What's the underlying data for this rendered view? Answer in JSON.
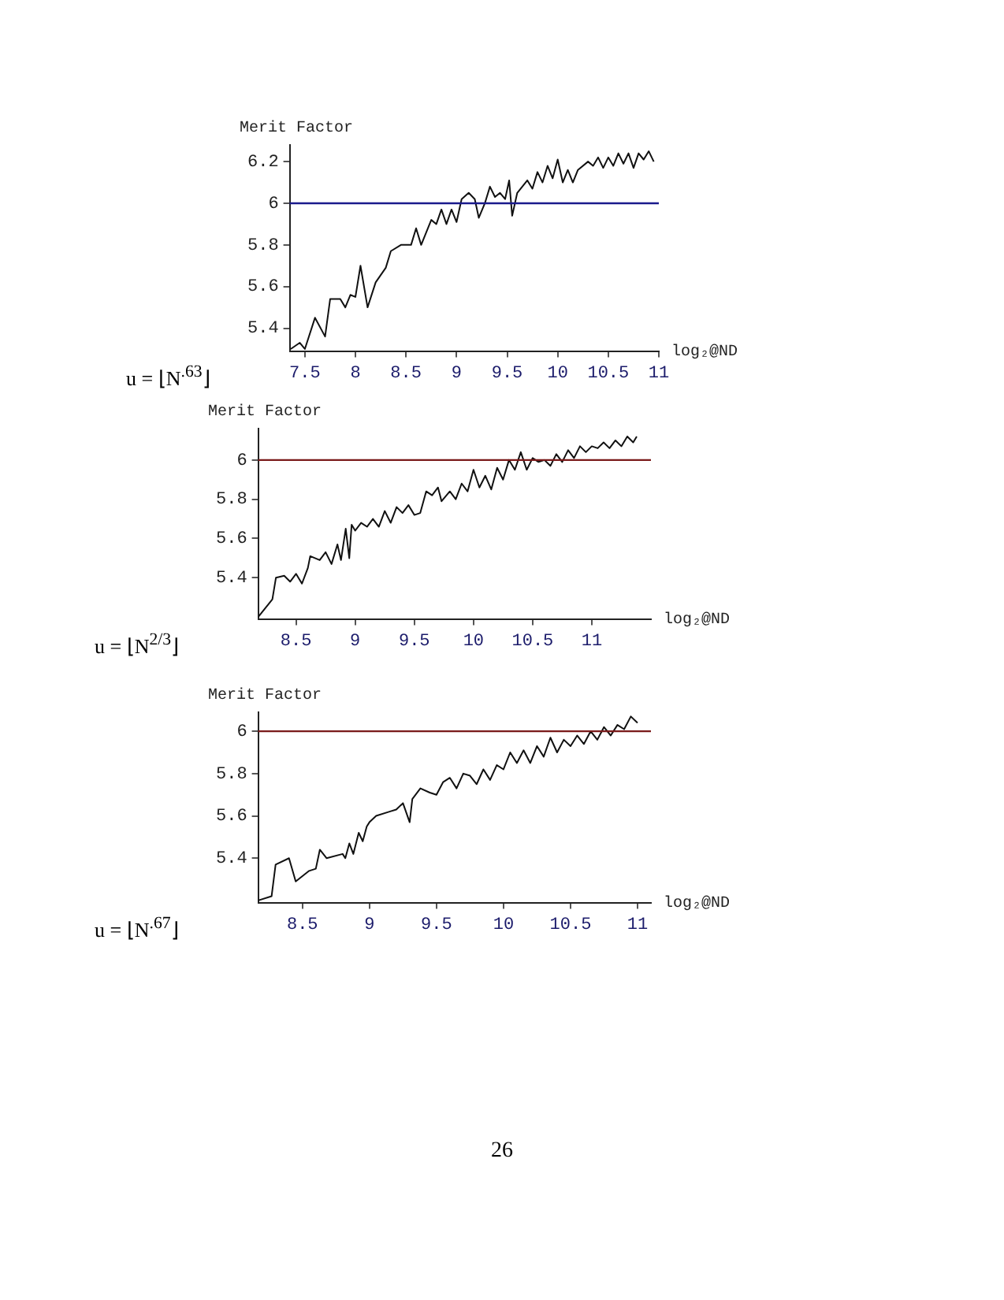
{
  "chart_data": [
    {
      "type": "line",
      "ylabel": "Merit Factor",
      "xlabel": "log₂@ND",
      "xlim": [
        7.35,
        11
      ],
      "ylim": [
        5.29,
        6.28
      ],
      "xticks": [
        7.5,
        8,
        8.5,
        9,
        9.5,
        10,
        10.5,
        11
      ],
      "yticks": [
        5.4,
        5.6,
        5.8,
        6,
        6.2
      ],
      "grid": false,
      "legend": false,
      "marker": "none",
      "line_style": "solid",
      "ref_lines": [
        {
          "axis": "y",
          "value": 6,
          "color": "#1a1a8c"
        }
      ],
      "annotations": [
        "u = ⌊N$^{.63}$⌋"
      ],
      "series": [
        {
          "color": "#111111",
          "x": [
            7.36,
            7.45,
            7.5,
            7.6,
            7.7,
            7.75,
            7.85,
            7.9,
            7.95,
            8.0,
            8.05,
            8.12,
            8.2,
            8.3,
            8.35,
            8.45,
            8.55,
            8.6,
            8.65,
            8.75,
            8.8,
            8.85,
            8.9,
            8.95,
            9.0,
            9.05,
            9.12,
            9.18,
            9.22,
            9.28,
            9.33,
            9.38,
            9.43,
            9.48,
            9.52,
            9.55,
            9.6,
            9.65,
            9.7,
            9.75,
            9.8,
            9.85,
            9.9,
            9.95,
            10.0,
            10.05,
            10.1,
            10.15,
            10.2,
            10.3,
            10.35,
            10.4,
            10.45,
            10.5,
            10.55,
            10.6,
            10.65,
            10.7,
            10.75,
            10.8,
            10.85,
            10.9,
            10.95
          ],
          "values": [
            5.3,
            5.33,
            5.3,
            5.45,
            5.36,
            5.54,
            5.54,
            5.5,
            5.56,
            5.55,
            5.7,
            5.5,
            5.62,
            5.69,
            5.77,
            5.8,
            5.8,
            5.88,
            5.8,
            5.92,
            5.9,
            5.97,
            5.9,
            5.97,
            5.91,
            6.02,
            6.05,
            6.02,
            5.93,
            6.0,
            6.08,
            6.03,
            6.05,
            6.02,
            6.11,
            5.94,
            6.05,
            6.08,
            6.11,
            6.07,
            6.15,
            6.1,
            6.18,
            6.12,
            6.21,
            6.1,
            6.16,
            6.1,
            6.16,
            6.2,
            6.18,
            6.22,
            6.17,
            6.22,
            6.18,
            6.24,
            6.19,
            6.24,
            6.17,
            6.24,
            6.21,
            6.25,
            6.2
          ]
        }
      ]
    },
    {
      "type": "line",
      "ylabel": "Merit Factor",
      "xlabel": "log₂@ND",
      "xlim": [
        8.18,
        11.5
      ],
      "ylim": [
        5.19,
        6.16
      ],
      "xticks": [
        8.5,
        9,
        9.5,
        10,
        10.5,
        11
      ],
      "yticks": [
        5.4,
        5.6,
        5.8,
        6
      ],
      "grid": false,
      "legend": false,
      "marker": "none",
      "line_style": "solid",
      "ref_lines": [
        {
          "axis": "y",
          "value": 6,
          "color": "#7a1a1a"
        }
      ],
      "annotations": [
        "u = ⌊N$^{2/3}$⌋"
      ],
      "series": [
        {
          "color": "#111111",
          "x": [
            8.18,
            8.3,
            8.33,
            8.4,
            8.45,
            8.5,
            8.55,
            8.6,
            8.62,
            8.7,
            8.75,
            8.8,
            8.85,
            8.88,
            8.92,
            8.95,
            8.97,
            9.0,
            9.05,
            9.1,
            9.15,
            9.2,
            9.25,
            9.3,
            9.35,
            9.4,
            9.45,
            9.5,
            9.55,
            9.6,
            9.65,
            9.7,
            9.73,
            9.8,
            9.85,
            9.9,
            9.95,
            10.0,
            10.05,
            10.1,
            10.15,
            10.2,
            10.25,
            10.3,
            10.35,
            10.4,
            10.45,
            10.5,
            10.55,
            10.6,
            10.65,
            10.7,
            10.75,
            10.8,
            10.85,
            10.9,
            10.95,
            11.0,
            11.05,
            11.1,
            11.15,
            11.2,
            11.25,
            11.3,
            11.35,
            11.38
          ],
          "values": [
            5.2,
            5.29,
            5.4,
            5.41,
            5.38,
            5.42,
            5.37,
            5.45,
            5.51,
            5.49,
            5.53,
            5.47,
            5.57,
            5.49,
            5.65,
            5.5,
            5.67,
            5.64,
            5.68,
            5.66,
            5.7,
            5.66,
            5.74,
            5.68,
            5.76,
            5.73,
            5.77,
            5.72,
            5.73,
            5.84,
            5.82,
            5.86,
            5.79,
            5.84,
            5.8,
            5.88,
            5.84,
            5.95,
            5.86,
            5.92,
            5.85,
            5.96,
            5.9,
            6.0,
            5.95,
            6.04,
            5.95,
            6.01,
            5.99,
            6.0,
            5.97,
            6.03,
            5.99,
            6.05,
            6.01,
            6.07,
            6.04,
            6.07,
            6.06,
            6.09,
            6.06,
            6.1,
            6.07,
            6.12,
            6.09,
            6.12
          ]
        }
      ]
    },
    {
      "type": "line",
      "ylabel": "Merit Factor",
      "xlabel": "log₂@ND",
      "xlim": [
        8.17,
        11.1
      ],
      "ylim": [
        5.19,
        6.09
      ],
      "xticks": [
        8.5,
        9,
        9.5,
        10,
        10.5,
        11
      ],
      "yticks": [
        5.4,
        5.6,
        5.8,
        6
      ],
      "grid": false,
      "legend": false,
      "marker": "none",
      "line_style": "solid",
      "ref_lines": [
        {
          "axis": "y",
          "value": 6,
          "color": "#7a1a1a"
        }
      ],
      "annotations": [
        "u = ⌊N$^{.67}$⌋",
        "26"
      ],
      "series": [
        {
          "color": "#111111",
          "x": [
            8.17,
            8.27,
            8.3,
            8.4,
            8.45,
            8.55,
            8.6,
            8.63,
            8.68,
            8.8,
            8.82,
            8.85,
            8.88,
            8.92,
            8.95,
            8.98,
            9.0,
            9.05,
            9.15,
            9.2,
            9.25,
            9.3,
            9.32,
            9.38,
            9.45,
            9.5,
            9.55,
            9.6,
            9.65,
            9.7,
            9.75,
            9.8,
            9.85,
            9.9,
            9.95,
            10.0,
            10.05,
            10.1,
            10.15,
            10.2,
            10.25,
            10.3,
            10.35,
            10.4,
            10.45,
            10.5,
            10.55,
            10.6,
            10.65,
            10.7,
            10.75,
            10.8,
            10.85,
            10.9,
            10.95,
            11.0
          ],
          "values": [
            5.2,
            5.22,
            5.37,
            5.4,
            5.29,
            5.34,
            5.35,
            5.44,
            5.4,
            5.42,
            5.4,
            5.47,
            5.42,
            5.52,
            5.48,
            5.55,
            5.57,
            5.6,
            5.62,
            5.63,
            5.66,
            5.57,
            5.68,
            5.73,
            5.71,
            5.7,
            5.76,
            5.78,
            5.73,
            5.8,
            5.79,
            5.75,
            5.82,
            5.77,
            5.84,
            5.82,
            5.9,
            5.85,
            5.91,
            5.85,
            5.93,
            5.88,
            5.97,
            5.9,
            5.96,
            5.93,
            5.98,
            5.94,
            6.0,
            5.96,
            6.02,
            5.98,
            6.03,
            6.01,
            6.07,
            6.04
          ]
        }
      ]
    }
  ]
}
